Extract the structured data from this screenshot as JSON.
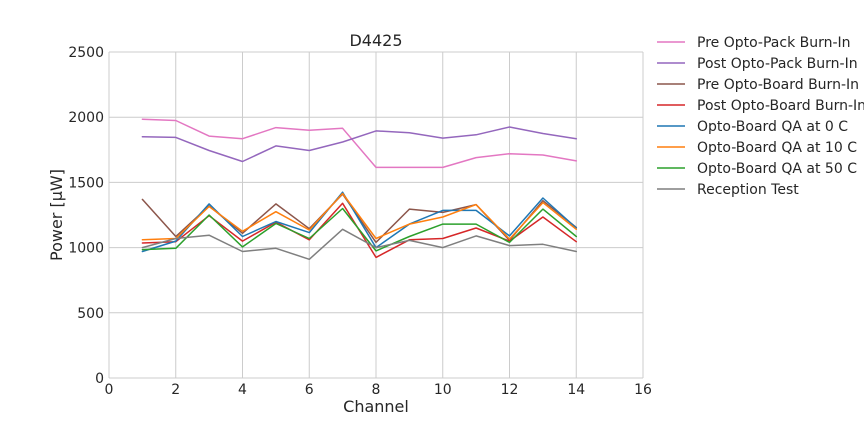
{
  "chart_data": {
    "type": "line",
    "title": "D4425",
    "xlabel": "Channel",
    "ylabel": "Power [μW]",
    "xlim": [
      0,
      16
    ],
    "ylim": [
      0,
      2500
    ],
    "xticks": [
      0,
      2,
      4,
      6,
      8,
      10,
      12,
      14,
      16
    ],
    "yticks": [
      0,
      500,
      1000,
      1500,
      2000,
      2500
    ],
    "grid": true,
    "legend": "outside-right",
    "x": [
      1,
      2,
      3,
      4,
      5,
      6,
      7,
      8,
      9,
      10,
      11,
      12,
      13,
      14
    ],
    "series": [
      {
        "name": "Pre Opto-Pack Burn-In",
        "color": "#e377c2",
        "values": [
          1985,
          1975,
          1855,
          1835,
          1920,
          1900,
          1915,
          1615,
          1615,
          1615,
          1690,
          1720,
          1710,
          1665
        ]
      },
      {
        "name": "Post Opto-Pack Burn-In",
        "color": "#9467bd",
        "values": [
          1850,
          1845,
          1745,
          1660,
          1780,
          1745,
          1810,
          1895,
          1880,
          1840,
          1865,
          1925,
          1875,
          1835
        ]
      },
      {
        "name": "Pre Opto-Board Burn-In",
        "color": "#8c564b",
        "values": [
          1370,
          1085,
          1320,
          1110,
          1335,
          1145,
          1410,
          1040,
          1295,
          1270,
          1330,
          1055,
          1360,
          1155
        ]
      },
      {
        "name": "Post Opto-Board Burn-In",
        "color": "#d62728",
        "values": [
          1035,
          1045,
          1245,
          1050,
          1195,
          1060,
          1340,
          925,
          1060,
          1070,
          1150,
          1050,
          1235,
          1045
        ]
      },
      {
        "name": "Opto-Board QA at 0 C",
        "color": "#1f77b4",
        "values": [
          970,
          1050,
          1335,
          1085,
          1200,
          1115,
          1425,
          1000,
          1180,
          1285,
          1285,
          1090,
          1380,
          1150
        ]
      },
      {
        "name": "Opto-Board QA at 10 C",
        "color": "#ff7f0e",
        "values": [
          1060,
          1070,
          1315,
          1125,
          1275,
          1135,
          1415,
          1070,
          1180,
          1235,
          1330,
          1065,
          1345,
          1140
        ]
      },
      {
        "name": "Opto-Board QA at 50 C",
        "color": "#2ca02c",
        "values": [
          985,
          995,
          1250,
          1005,
          1185,
          1070,
          1300,
          975,
          1085,
          1180,
          1180,
          1040,
          1295,
          1085
        ]
      },
      {
        "name": "Reception Test",
        "color": "#7f7f7f",
        "values": [
          1000,
          1070,
          1095,
          970,
          995,
          910,
          1140,
          1000,
          1055,
          1000,
          1090,
          1015,
          1025,
          970
        ]
      }
    ]
  }
}
